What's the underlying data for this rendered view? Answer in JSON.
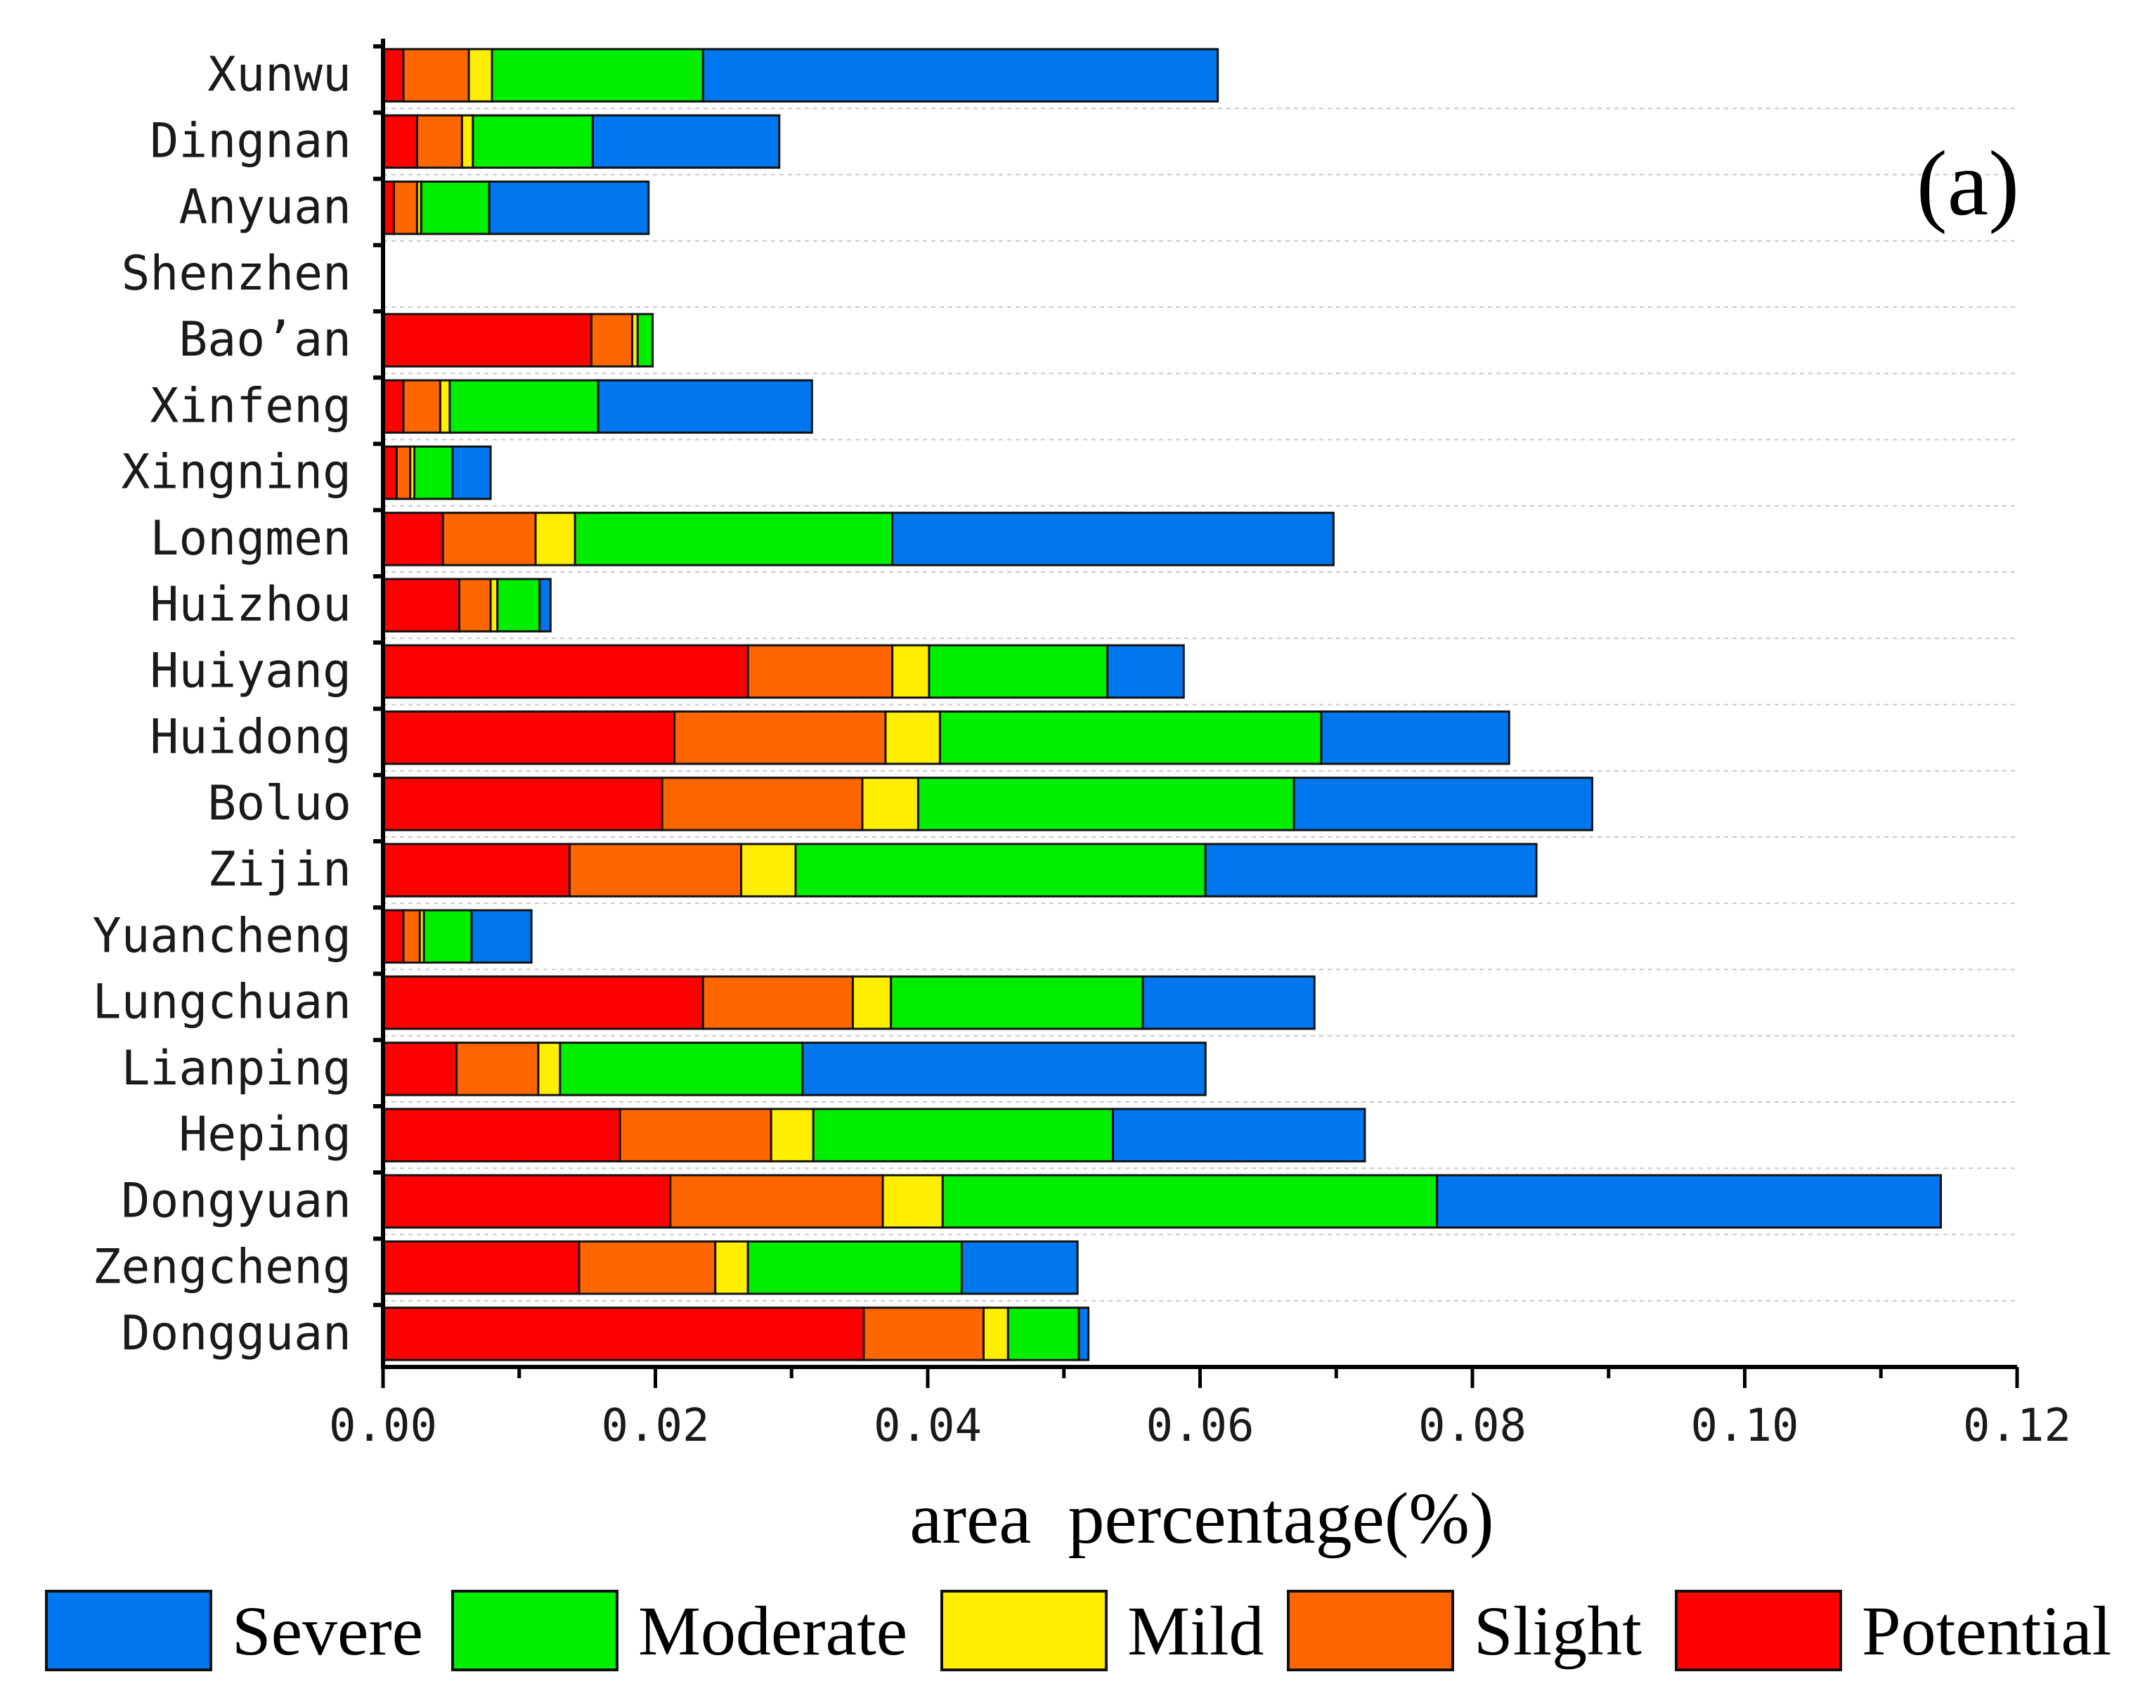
{
  "chart_data": {
    "type": "bar",
    "orientation": "horizontal",
    "stacked": true,
    "panel_label": "(a)",
    "xlabel": "area  percentage(%)",
    "ylabel": "",
    "xlim": [
      0,
      0.12
    ],
    "x_ticks": [
      0,
      0.02,
      0.04,
      0.06,
      0.08,
      0.1,
      0.12
    ],
    "x_tick_labels": [
      "0.00",
      "0.02",
      "0.04",
      "0.06",
      "0.08",
      "0.10",
      "0.12"
    ],
    "grid": "dashed horizontal lines",
    "legend_position": "bottom",
    "categories": [
      "Xunwu",
      "Dingnan",
      "Anyuan",
      "Shenzhen",
      "Bao’an",
      "Xinfeng",
      "Xingning",
      "Longmen",
      "Huizhou",
      "Huiyang",
      "Huidong",
      "Boluo",
      "Zijin",
      "Yuancheng",
      "Lungchuan",
      "Lianping",
      "Heping",
      "Dongyuan",
      "Zengcheng",
      "Dongguan"
    ],
    "series": [
      {
        "name": "Potential",
        "color": "#ff0000",
        "values": [
          0.0015,
          0.0025,
          0.0008,
          0,
          0.0153,
          0.0015,
          0.001,
          0.0044,
          0.0056,
          0.0268,
          0.0214,
          0.0205,
          0.0137,
          0.0015,
          0.0235,
          0.0054,
          0.0174,
          0.0211,
          0.0144,
          0.0353
        ]
      },
      {
        "name": "Slight",
        "color": "#ff6600",
        "values": [
          0.0048,
          0.0033,
          0.0017,
          0,
          0.003,
          0.0027,
          0.001,
          0.0068,
          0.0023,
          0.0106,
          0.0155,
          0.0147,
          0.0126,
          0.0012,
          0.011,
          0.006,
          0.0111,
          0.0156,
          0.01,
          0.0088
        ]
      },
      {
        "name": "Mild",
        "color": "#ffee00",
        "values": [
          0.0017,
          0.0008,
          0.0003,
          0,
          0.0004,
          0.0007,
          0.0003,
          0.0029,
          0.0005,
          0.0027,
          0.004,
          0.0041,
          0.004,
          0.0003,
          0.0028,
          0.0016,
          0.0031,
          0.0044,
          0.0024,
          0.0018
        ]
      },
      {
        "name": "Moderate",
        "color": "#00ee00",
        "values": [
          0.0155,
          0.0088,
          0.005,
          0,
          0.0011,
          0.0109,
          0.0028,
          0.0233,
          0.0031,
          0.0131,
          0.028,
          0.0276,
          0.0301,
          0.0035,
          0.0185,
          0.0178,
          0.022,
          0.0363,
          0.0157,
          0.0052
        ]
      },
      {
        "name": "Severe",
        "color": "#0077ee",
        "values": [
          0.0378,
          0.0137,
          0.0117,
          0,
          0,
          0.0157,
          0.0028,
          0.0324,
          0.0008,
          0.0056,
          0.0138,
          0.0219,
          0.0243,
          0.0044,
          0.0126,
          0.0296,
          0.0185,
          0.037,
          0.0085,
          0.0007
        ]
      }
    ],
    "legend_order": [
      "Severe",
      "Moderate",
      "Mild",
      "Slight",
      "Potential"
    ]
  }
}
